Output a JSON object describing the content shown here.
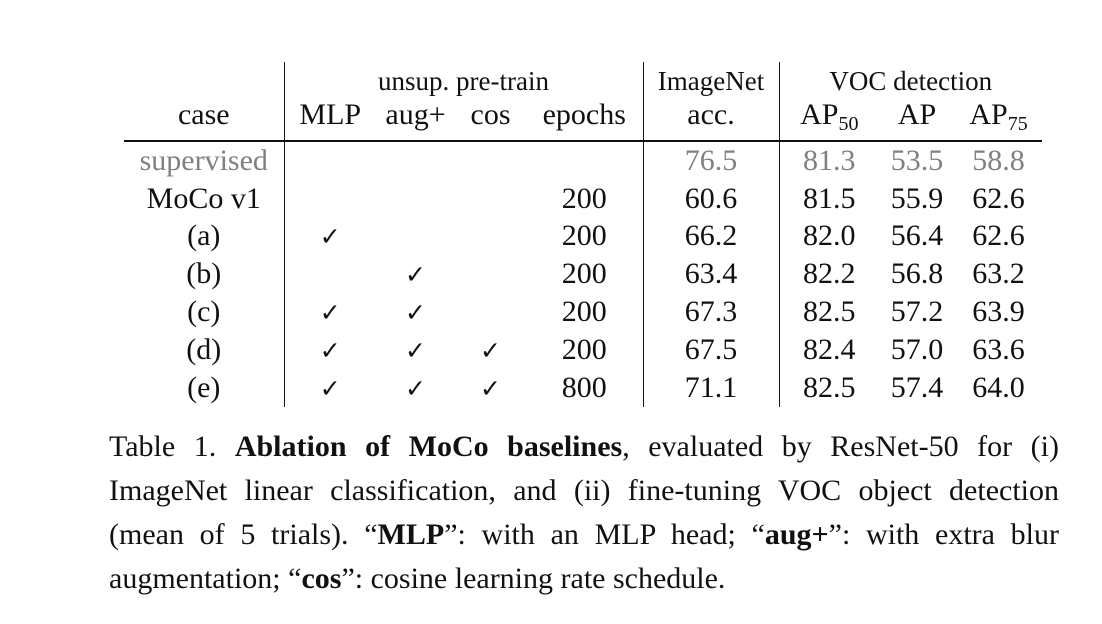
{
  "table": {
    "groups": {
      "unsup": "unsup. pre-train",
      "imagenet": "ImageNet",
      "voc": "VOC detection"
    },
    "headers": {
      "case": "case",
      "mlp": "MLP",
      "aug": "aug+",
      "cos": "cos",
      "epochs": "epochs",
      "acc": "acc.",
      "ap50_base": "AP",
      "ap50_sub": "50",
      "ap": "AP",
      "ap75_base": "AP",
      "ap75_sub": "75"
    },
    "check_mark": "✓",
    "rows": [
      {
        "case": "supervised",
        "mlp": false,
        "aug": false,
        "cos": false,
        "epochs": "",
        "acc": "76.5",
        "ap50": "81.3",
        "ap": "53.5",
        "ap75": "58.8"
      },
      {
        "case": "MoCo v1",
        "mlp": false,
        "aug": false,
        "cos": false,
        "epochs": "200",
        "acc": "60.6",
        "ap50": "81.5",
        "ap": "55.9",
        "ap75": "62.6"
      },
      {
        "case": "(a)",
        "mlp": true,
        "aug": false,
        "cos": false,
        "epochs": "200",
        "acc": "66.2",
        "ap50": "82.0",
        "ap": "56.4",
        "ap75": "62.6"
      },
      {
        "case": "(b)",
        "mlp": false,
        "aug": true,
        "cos": false,
        "epochs": "200",
        "acc": "63.4",
        "ap50": "82.2",
        "ap": "56.8",
        "ap75": "63.2"
      },
      {
        "case": "(c)",
        "mlp": true,
        "aug": true,
        "cos": false,
        "epochs": "200",
        "acc": "67.3",
        "ap50": "82.5",
        "ap": "57.2",
        "ap75": "63.9"
      },
      {
        "case": "(d)",
        "mlp": true,
        "aug": true,
        "cos": true,
        "epochs": "200",
        "acc": "67.5",
        "ap50": "82.4",
        "ap": "57.0",
        "ap75": "63.6"
      },
      {
        "case": "(e)",
        "mlp": true,
        "aug": true,
        "cos": true,
        "epochs": "800",
        "acc": "71.1",
        "ap50": "82.5",
        "ap": "57.4",
        "ap75": "64.0"
      }
    ]
  },
  "caption": {
    "label": "Table 1.",
    "title": "Ablation of MoCo baselines",
    "text1": ", evaluated by ResNet-50 for (i) ImageNet linear classification, and (ii) fine-tuning VOC object detection (mean of 5 trials). “",
    "mlp_term": "MLP",
    "text2": "”: with an MLP head; “",
    "aug_term": "aug+",
    "text3": "”: with extra blur augmentation; “",
    "cos_term": "cos",
    "text4": "”: cosine learning rate schedule."
  }
}
